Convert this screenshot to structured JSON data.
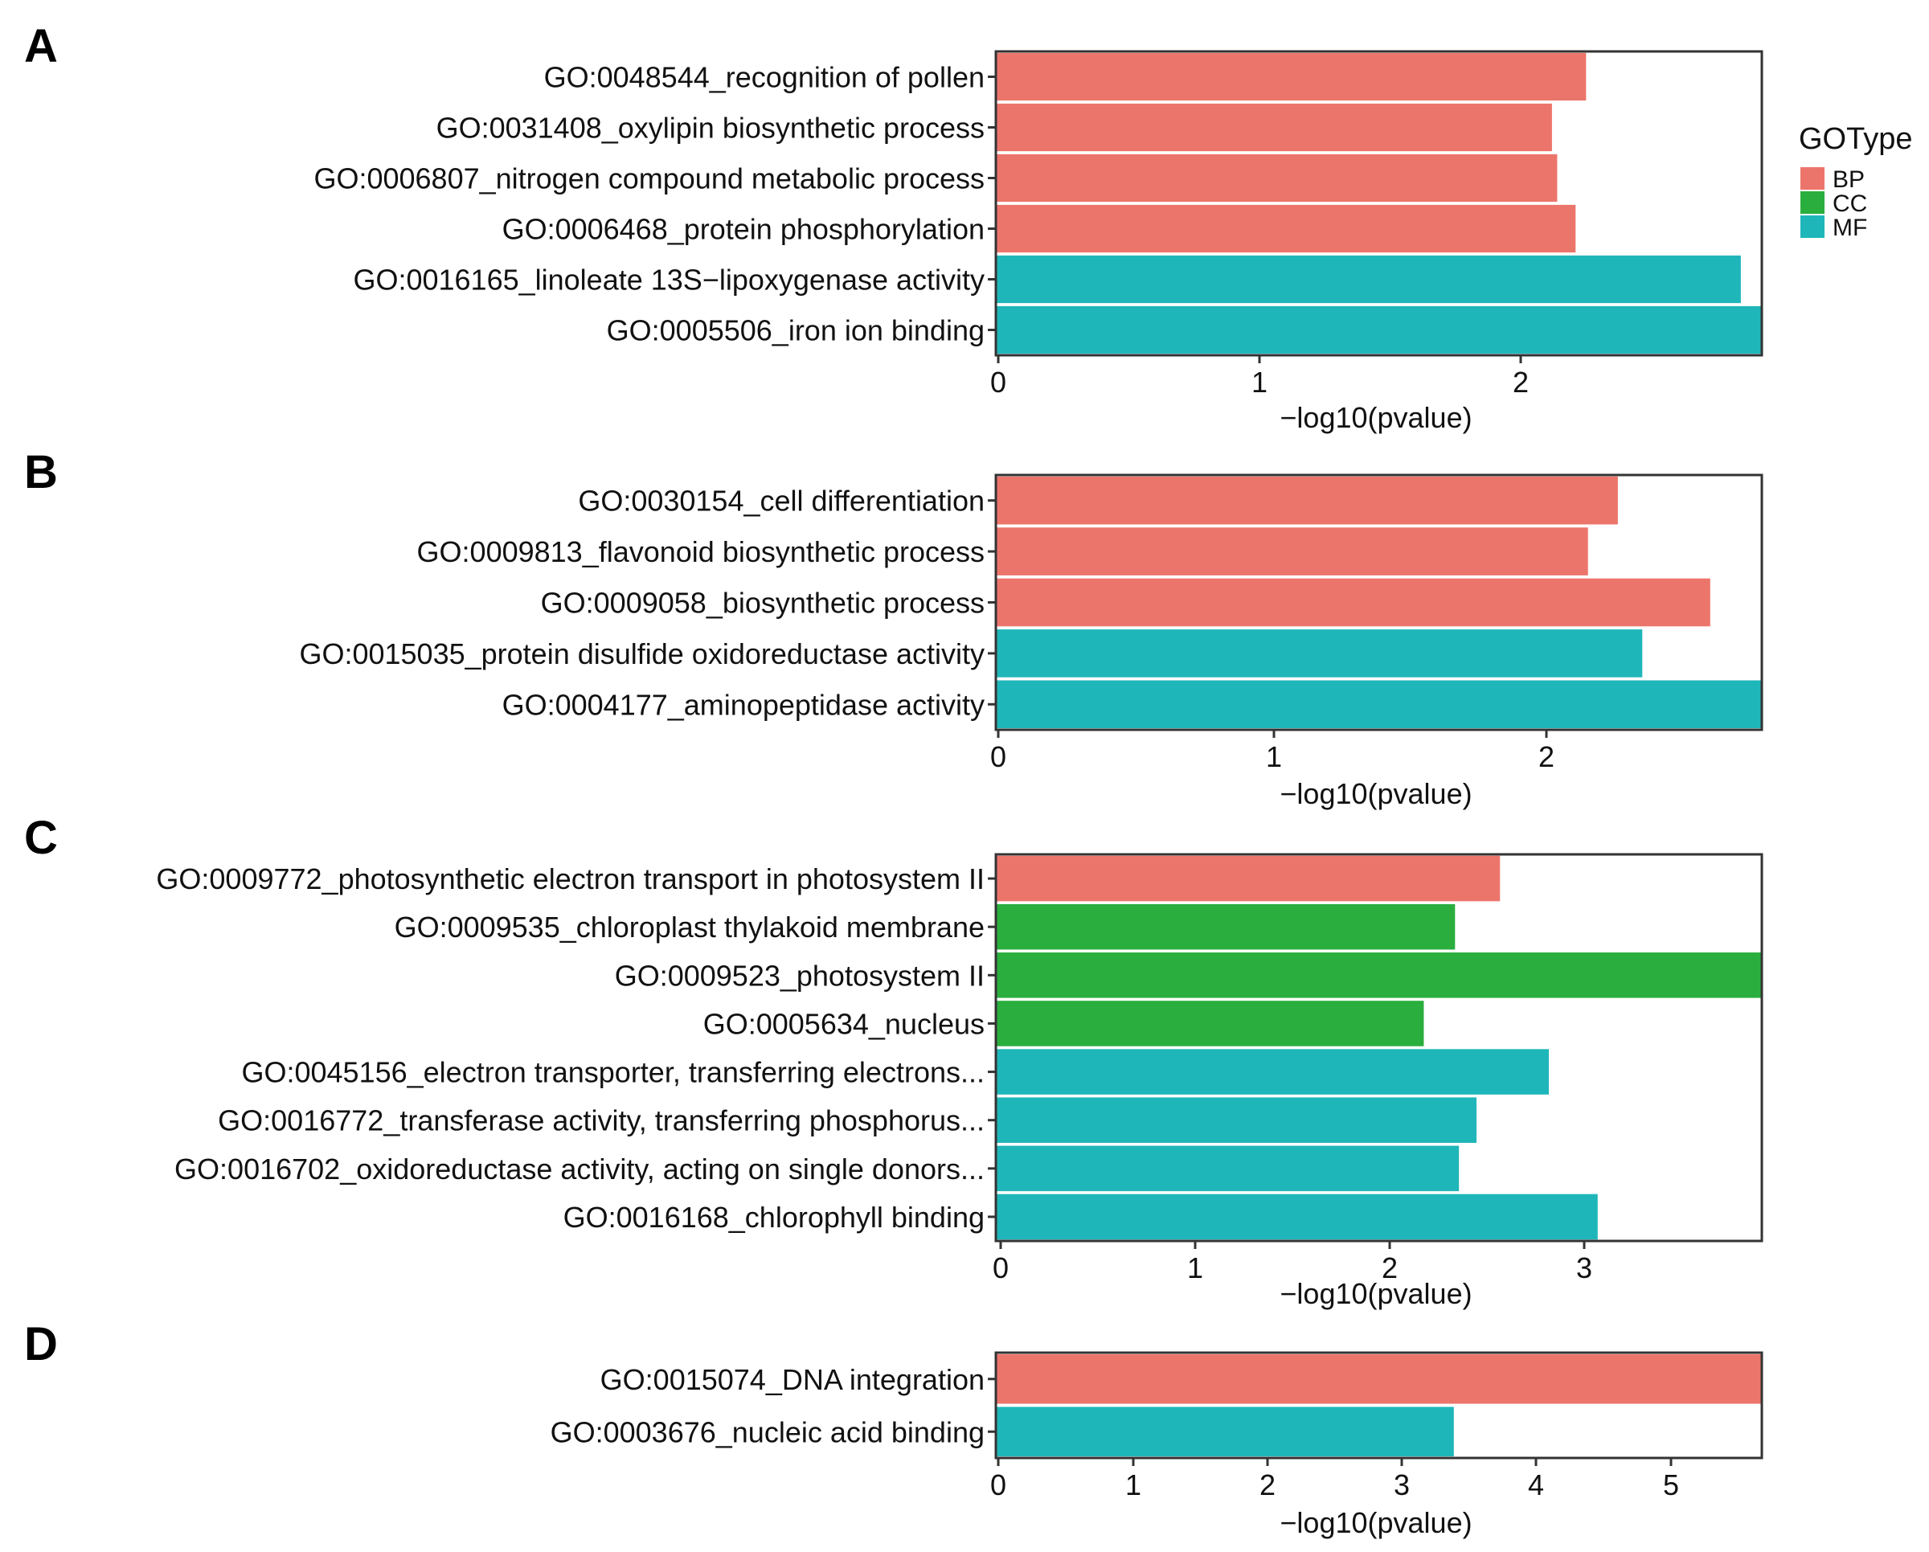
{
  "legend": {
    "title": "GOType",
    "entries": [
      {
        "label": "BP",
        "color": "#EC756B"
      },
      {
        "label": "CC",
        "color": "#2AAE3E"
      },
      {
        "label": "MF",
        "color": "#1FB6BA"
      }
    ]
  },
  "chart_data": [
    {
      "panel": "A",
      "type": "bar",
      "orientation": "horizontal",
      "xlabel": "−log10(pvalue)",
      "xlim": [
        0,
        2.92
      ],
      "xticks": [
        "0",
        "1",
        "2"
      ],
      "categories": [
        "GO:0048544_recognition of pollen",
        "GO:0031408_oxylipin biosynthetic process",
        "GO:0006807_nitrogen compound metabolic process",
        "GO:0006468_protein phosphorylation",
        "GO:0016165_linoleate 13S−lipoxygenase activity",
        "GO:0005506_iron ion binding"
      ],
      "values": [
        2.25,
        2.12,
        2.14,
        2.21,
        2.84,
        2.92
      ],
      "types": [
        "BP",
        "BP",
        "BP",
        "BP",
        "MF",
        "MF"
      ]
    },
    {
      "panel": "B",
      "type": "bar",
      "orientation": "horizontal",
      "xlabel": "−log10(pvalue)",
      "xlim": [
        0,
        2.82
      ],
      "xticks": [
        "0",
        "1",
        "2"
      ],
      "categories": [
        "GO:0030154_cell differentiation",
        "GO:0009813_flavonoid biosynthetic process",
        "GO:0009058_biosynthetic process",
        "GO:0015035_protein disulfide oxidoreductase activity",
        "GO:0004177_aminopeptidase activity"
      ],
      "values": [
        2.29,
        2.18,
        2.63,
        2.38,
        2.82
      ],
      "types": [
        "BP",
        "BP",
        "BP",
        "MF",
        "MF"
      ]
    },
    {
      "panel": "C",
      "type": "bar",
      "orientation": "horizontal",
      "xlabel": "−log10(pvalue)",
      "xlim": [
        0,
        3.92
      ],
      "xticks": [
        "0",
        "1",
        "2",
        "3"
      ],
      "categories": [
        "GO:0009772_photosynthetic electron transport in photosystem II",
        "GO:0009535_chloroplast thylakoid membrane",
        "GO:0009523_photosystem II",
        "GO:0005634_nucleus",
        "GO:0045156_electron transporter, transferring electrons...",
        "GO:0016772_transferase activity, transferring phosphorus...",
        "GO:0016702_oxidoreductase activity, acting on single donors...",
        "GO:0016168_chlorophyll binding"
      ],
      "values": [
        2.58,
        2.35,
        3.92,
        2.19,
        2.83,
        2.46,
        2.37,
        3.08
      ],
      "types": [
        "BP",
        "CC",
        "CC",
        "CC",
        "MF",
        "MF",
        "MF",
        "MF"
      ]
    },
    {
      "panel": "D",
      "type": "bar",
      "orientation": "horizontal",
      "xlabel": "−log10(pvalue)",
      "xlim": [
        0,
        5.72
      ],
      "xticks": [
        "0",
        "1",
        "2",
        "3",
        "4",
        "5"
      ],
      "categories": [
        "GO:0015074_DNA integration",
        "GO:0003676_nucleic acid binding"
      ],
      "values": [
        5.72,
        3.42
      ],
      "types": [
        "BP",
        "MF"
      ]
    }
  ]
}
